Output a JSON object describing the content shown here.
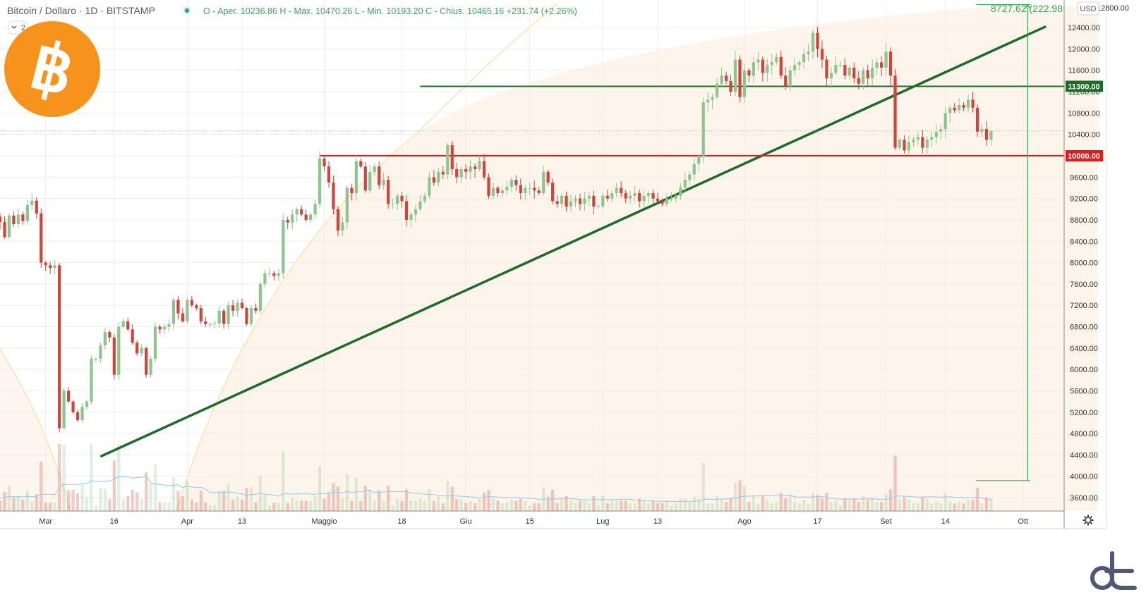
{
  "header": {
    "title": "Bitcoin / Dollaro · 1D · BITSTAMP",
    "ohlc": "O - Aper. 10236.86  H - Max. 10470.26  L - Min. 10193.20  C - Chius. 10465.16 +231.74 (+2.26%)",
    "interval_badge": "2",
    "currency_button": "USD",
    "top_axis_partial": "12800.00"
  },
  "colors": {
    "up": "#8dc58f",
    "down": "#d0453b",
    "trendline": "#1e6b28",
    "resistance": "#1e6b28",
    "support": "#e31b1b",
    "measure": "#3aa65a",
    "bitcoin_logo": "#f7931a",
    "brand_logo": "#505873"
  },
  "chart_data": {
    "type": "candlestick",
    "symbol": "Bitcoin / Dollaro",
    "interval": "1D",
    "exchange": "BITSTAMP",
    "ylim": [
      3350,
      12850
    ],
    "y_ticks": [
      3600,
      4000,
      4400,
      4800,
      5200,
      5600,
      6000,
      6400,
      6800,
      7200,
      7600,
      8000,
      8400,
      8800,
      9200,
      9600,
      10000,
      10400,
      10800,
      11200,
      11600,
      12000,
      12400
    ],
    "x_tick_labels": [
      "Mar",
      "16",
      "Apr",
      "13",
      "Maggio",
      "18",
      "Giu",
      "15",
      "Lug",
      "13",
      "Ago",
      "17",
      "Set",
      "14",
      "Ott"
    ],
    "x_range": [
      "2020-02-20",
      "2020-10-10"
    ],
    "last_date": "2020-09-24",
    "closes": [
      9600,
      9650,
      9700,
      9620,
      9900,
      9750,
      9850,
      9380,
      9050,
      8830,
      8700,
      8860,
      8760,
      8480,
      8880,
      8720,
      8900,
      8780,
      9080,
      9160,
      8920,
      8000,
      7950,
      7900,
      7950,
      4900,
      5600,
      5400,
      5200,
      5050,
      5300,
      5400,
      6200,
      6200,
      6450,
      6700,
      6600,
      5900,
      6800,
      6900,
      6750,
      6500,
      6300,
      6400,
      5900,
      6200,
      6800,
      6750,
      6800,
      6850,
      7300,
      7050,
      6900,
      7300,
      7200,
      7150,
      6900,
      6850,
      6850,
      6860,
      7100,
      6850,
      7200,
      7100,
      7250,
      7150,
      6850,
      7150,
      7100,
      7600,
      7800,
      7800,
      7750,
      7800,
      8800,
      8750,
      8900,
      9000,
      8900,
      8800,
      8900,
      9100,
      9950,
      9800,
      9500,
      9000,
      8600,
      8750,
      9400,
      9300,
      9900,
      9800,
      9350,
      9700,
      9800,
      9450,
      9550,
      9100,
      9100,
      9250,
      9150,
      8800,
      8900,
      9000,
      9150,
      9250,
      9600,
      9500,
      9700,
      9650,
      10200,
      9750,
      9600,
      9750,
      9700,
      9800,
      9750,
      9900,
      9600,
      9250,
      9400,
      9300,
      9350,
      9420,
      9550,
      9450,
      9300,
      9400,
      9400,
      9350,
      9300,
      9700,
      9500,
      9150,
      9100,
      9250,
      9050,
      9150,
      9200,
      9100,
      9200,
      9250,
      9050,
      9050,
      9250,
      9200,
      9300,
      9400,
      9300,
      9200,
      9250,
      9300,
      9150,
      9250,
      9300,
      9200,
      9150,
      9100,
      9200,
      9200,
      9250,
      9400,
      9550,
      9650,
      9850,
      10000,
      11000,
      11050,
      11100,
      11350,
      11500,
      11400,
      11200,
      11800,
      11100,
      11600,
      11500,
      11750,
      11800,
      11550,
      11700,
      11750,
      11850,
      11500,
      11300,
      11600,
      11700,
      11750,
      11900,
      11950,
      12300,
      12000,
      11800,
      11450,
      11550,
      11700,
      11700,
      11500,
      11650,
      11450,
      11350,
      11600,
      11450,
      11650,
      11750,
      11650,
      11950,
      11500,
      10150,
      10300,
      10100,
      10250,
      10300,
      10350,
      10150,
      10300,
      10350,
      10450,
      10500,
      10800,
      10900,
      10850,
      10950,
      10900,
      11050,
      10900,
      10450,
      10500,
      10300,
      10465
    ]
  }
}
